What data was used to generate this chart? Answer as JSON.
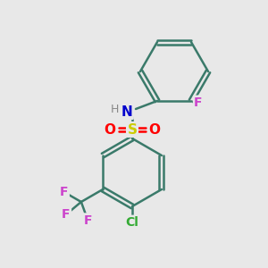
{
  "bg_color": "#e8e8e8",
  "bond_color": "#3a7a6a",
  "bond_width": 1.8,
  "atom_colors": {
    "S": "#cccc00",
    "O": "#ff0000",
    "N": "#0000cc",
    "H": "#888888",
    "F": "#cc44cc",
    "Cl": "#33aa33",
    "C": "#000000"
  },
  "figsize": [
    3.0,
    3.0
  ],
  "dpi": 100
}
